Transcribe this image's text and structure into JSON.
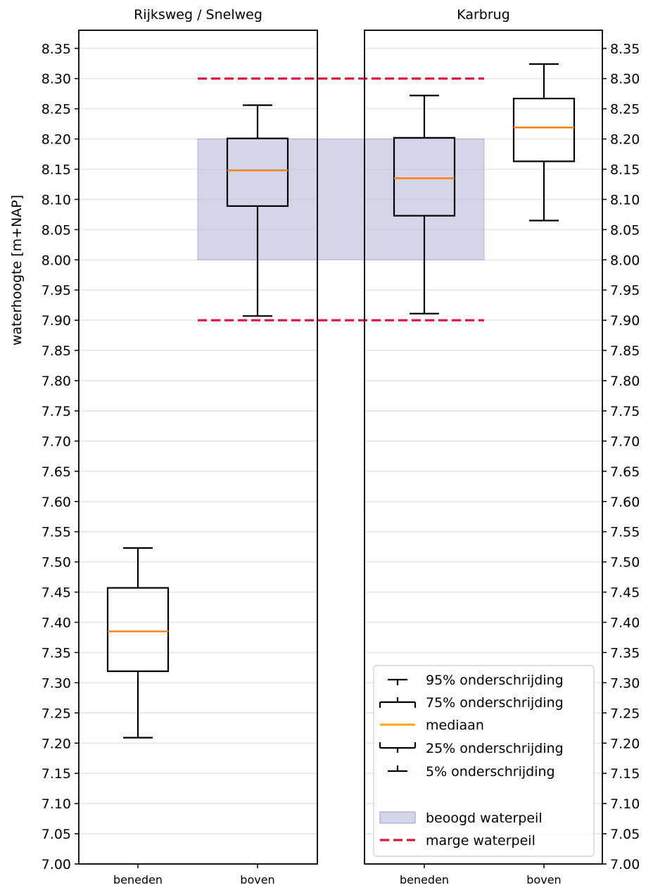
{
  "chart_data": {
    "type": "boxplot",
    "ylabel": "waterhoogte [m+NAP]",
    "ylim": [
      7.0,
      8.38
    ],
    "yticks": [
      7.0,
      7.05,
      7.1,
      7.15,
      7.2,
      7.25,
      7.3,
      7.35,
      7.4,
      7.45,
      7.5,
      7.55,
      7.6,
      7.65,
      7.7,
      7.75,
      7.8,
      7.85,
      7.9,
      7.95,
      8.0,
      8.05,
      8.1,
      8.15,
      8.2,
      8.25,
      8.3,
      8.35
    ],
    "ytick_labels": [
      "7.00",
      "7.05",
      "7.10",
      "7.15",
      "7.20",
      "7.25",
      "7.30",
      "7.35",
      "7.40",
      "7.45",
      "7.50",
      "7.55",
      "7.60",
      "7.65",
      "7.70",
      "7.75",
      "7.80",
      "7.85",
      "7.90",
      "7.95",
      "8.00",
      "8.05",
      "8.10",
      "8.15",
      "8.20",
      "8.25",
      "8.30",
      "8.35"
    ],
    "grid": "horizontal",
    "legend_position": "bottom-right",
    "colors": {
      "box": "#000000",
      "median": "#ff7f0e",
      "target_fill": "#b3b3d9",
      "margin_line": "#dc143c",
      "grid": "#e6e6e6"
    },
    "panels": [
      {
        "title": "Rijksweg / Snelweg",
        "categories": [
          "beneden",
          "boven"
        ],
        "boxes": [
          {
            "category": "beneden",
            "p5": 7.209,
            "p25": 7.319,
            "median": 7.385,
            "p75": 7.457,
            "p95": 7.523
          },
          {
            "category": "boven",
            "p5": 7.907,
            "p25": 8.089,
            "median": 8.148,
            "p75": 8.201,
            "p95": 8.256
          }
        ]
      },
      {
        "title": "Karbrug",
        "categories": [
          "beneden",
          "boven"
        ],
        "boxes": [
          {
            "category": "beneden",
            "p5": 7.911,
            "p25": 8.073,
            "median": 8.135,
            "p75": 8.202,
            "p95": 8.272
          },
          {
            "category": "boven",
            "p5": 8.065,
            "p25": 8.163,
            "median": 8.219,
            "p75": 8.267,
            "p95": 8.324
          }
        ]
      }
    ],
    "target_band": {
      "low": 8.0,
      "high": 8.2
    },
    "margin_lines": {
      "low": 7.9,
      "high": 8.3
    },
    "legend": [
      {
        "key": "p95",
        "label": "95% onderschrijding"
      },
      {
        "key": "p75",
        "label": "75% onderschrijding"
      },
      {
        "key": "median",
        "label": "mediaan"
      },
      {
        "key": "p25",
        "label": "25% onderschrijding"
      },
      {
        "key": "p5",
        "label": "5% onderschrijding"
      },
      {
        "key": "target",
        "label": "beoogd waterpeil"
      },
      {
        "key": "margin",
        "label": "marge waterpeil"
      }
    ]
  }
}
